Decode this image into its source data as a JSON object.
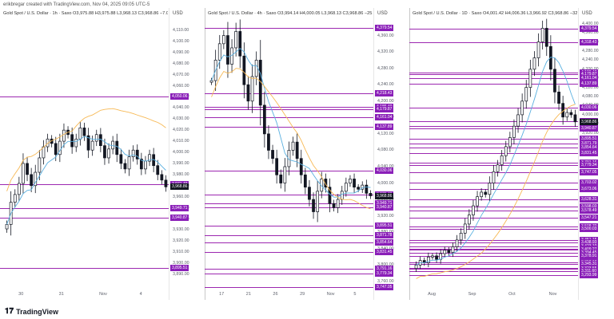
{
  "header": "erikbregar created with TradingView.com, Nov 04, 2025 09:05 UTC-5",
  "brand": "TradingView",
  "currency": "USD",
  "colors": {
    "level": "#9c27b0",
    "tag": "#8a1fb8",
    "price_tag": "#131722",
    "ma_orange": "#f7b955",
    "ma_blue": "#5ab0e0"
  },
  "panels": [
    {
      "title": "Gold Spot / U.S. Dollar · 1h · Saxo  O3,975.88  H3,975.88  L3,968.13  C3,968.86  −7.04 (−0.18%)",
      "ymin": 3880,
      "ymax": 4120,
      "ticks": [
        "4,110.00",
        "4,100.00",
        "4,090.00",
        "4,080.00",
        "4,070.00",
        "4,060.00",
        "4,050.00",
        "4,040.00",
        "4,030.00",
        "4,020.00",
        "4,010.00",
        "4,000.00",
        "3,990.00",
        "3,980.00",
        "3,970.00",
        "3,960.00",
        "3,950.00",
        "3,940.00",
        "3,930.00",
        "3,920.00",
        "3,910.00",
        "3,900.00",
        "3,890.00"
      ],
      "levels": [
        "4,050.06",
        "3,971.49",
        "3,949.71",
        "3,940.87",
        "3,895.51"
      ],
      "price": "3,968.86",
      "xticks": [
        "30",
        "31",
        "Nov",
        "4"
      ],
      "close": [
        3935,
        3955,
        3962,
        3972,
        3990,
        3980,
        3970,
        3982,
        3995,
        4005,
        4012,
        4008,
        3998,
        4010,
        4020,
        4016,
        4005,
        4012,
        4022,
        4015,
        4002,
        4010,
        4016,
        4006,
        3995,
        4003,
        4010,
        3998,
        3990,
        3985,
        3996,
        4002,
        3994,
        3985,
        3992,
        3998,
        3988,
        3980,
        3975,
        3968.86
      ]
    },
    {
      "title": "Gold Spot / U.S. Dollar · 4h · Saxo  O3,994.14  H4,000.05  L3,968.13  C3,968.86  −25.16 (−0.63%)",
      "ymin": 3750,
      "ymax": 4400,
      "ticks": [
        "4,360.00",
        "4,320.00",
        "4,280.00",
        "4,240.00",
        "4,200.00",
        "4,160.00",
        "4,120.00",
        "4,080.00",
        "4,040.00",
        "4,000.00",
        "3,960.00",
        "3,920.00",
        "3,880.00",
        "3,840.00",
        "3,800.00",
        "3,760.00"
      ],
      "levels": [
        "4,379.54",
        "4,218.43",
        "4,186.40",
        "4,179.87",
        "4,161.04",
        "4,137.89",
        "4,030.06",
        "3,971.49",
        "3,949.71",
        "3,940.87",
        "3,895.51",
        "3,871.78",
        "3,854.64",
        "3,831.45",
        "3,791.16",
        "3,779.34",
        "3,747.05"
      ],
      "price": "3,968.86",
      "xticks": [
        "17",
        "21",
        "26",
        "29",
        "Nov",
        "5"
      ],
      "close": [
        4250,
        4300,
        4340,
        4360,
        4290,
        4330,
        4370,
        4310,
        4240,
        4200,
        4260,
        4300,
        4190,
        4120,
        4080,
        4060,
        4020,
        4000,
        4040,
        4080,
        4100,
        4060,
        4020,
        3990,
        3960,
        3930,
        3980,
        4010,
        3990,
        3950,
        3940,
        3960,
        3980,
        4000,
        4010,
        3990,
        3985,
        3995,
        3975,
        3968.86
      ]
    },
    {
      "title": "Gold Spot / U.S. Dollar · 1D · Saxo  O4,001.42  H4,006.36  L3,966.92  C3,968.86  −32.55 (−0.81%)",
      "ymin": 3250,
      "ymax": 4420,
      "ticks": [
        "4,400.00",
        "4,360.00",
        "4,320.00",
        "4,280.00",
        "4,240.00",
        "4,200.00",
        "4,160.00",
        "4,120.00",
        "4,080.00",
        "4,040.00",
        "4,000.00",
        "3,960.00",
        "3,920.00"
      ],
      "levels": [
        "4,379.54",
        "4,318.43",
        "4,186.40",
        "4,179.87",
        "4,161.04",
        "4,137.89",
        "4,030.06",
        "3,971.49",
        "3,949.71",
        "3,940.87",
        "3,895.51",
        "3,871.79",
        "3,854.64",
        "3,831.45",
        "3,791.16",
        "3,779.34",
        "3,747.05",
        "3,703.02",
        "3,673.06",
        "3,628.31",
        "3,598.03",
        "3,578.49",
        "3,547.21",
        "3,508.70",
        "3,500.03",
        "3,451.15",
        "3,438.93",
        "3,423.10",
        "3,410.50",
        "3,409.27",
        "3,394.45",
        "3,378.91",
        "3,352.18",
        "3,345.31",
        "3,326.38",
        "3,323.55",
        "3,311.60",
        "3,293.99"
      ],
      "price": "3,968.86",
      "xticks": [
        "Aug",
        "Sep",
        "Oct",
        "Nov"
      ],
      "close": [
        3340,
        3360,
        3350,
        3375,
        3380,
        3365,
        3390,
        3405,
        3395,
        3420,
        3450,
        3480,
        3520,
        3560,
        3600,
        3640,
        3660,
        3650,
        3700,
        3750,
        3780,
        3820,
        3860,
        3900,
        3950,
        4000,
        4060,
        4120,
        4200,
        4250,
        4320,
        4380,
        4300,
        4200,
        4100,
        4050,
        3990,
        4010,
        4000,
        3968.86
      ]
    }
  ]
}
